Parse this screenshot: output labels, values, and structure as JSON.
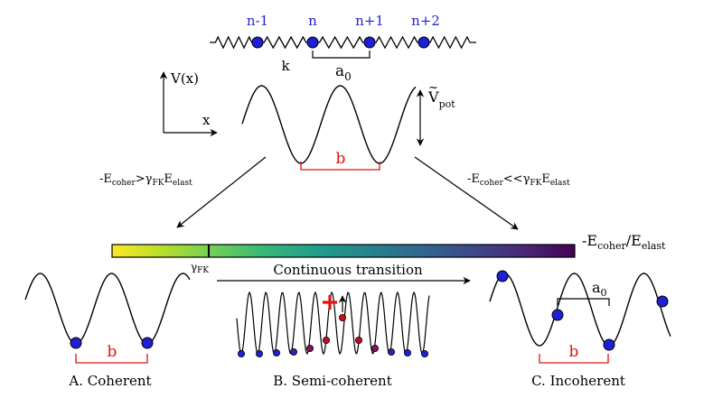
{
  "chain": {
    "labels": [
      "n-1",
      "n",
      "n+1",
      "n+2"
    ],
    "spring_label": "k",
    "spacing_label": "a",
    "spacing_sub": "0"
  },
  "axes": {
    "y_label": "V(x)",
    "x_label": "x"
  },
  "potential": {
    "amplitude_label": "V",
    "amplitude_sub": "pot",
    "period_label": "b"
  },
  "arrows": {
    "left": {
      "pre": "-E",
      "sub1": "coher",
      "rel": ">γ",
      "sub2": "FK",
      "post": "E",
      "sub3": "elast"
    },
    "right": {
      "pre": "-E",
      "sub1": "coher",
      "rel": "<<γ",
      "sub2": "FK",
      "post": "E",
      "sub3": "elast"
    }
  },
  "colorbar": {
    "axis_pre": "-E",
    "axis_sub1": "coher",
    "axis_mid": "/E",
    "axis_sub2": "elast",
    "marker_pre": "γ",
    "marker_sub": "FK",
    "colors": [
      "#fde725",
      "#b5de2b",
      "#6ece58",
      "#35b779",
      "#1f9e89",
      "#26828e",
      "#31688e",
      "#3e4989",
      "#482878",
      "#440154"
    ]
  },
  "transition_label": "Continuous transition",
  "panels": {
    "coherent": {
      "caption": "A. Coherent",
      "period_label": "b"
    },
    "semi": {
      "caption": "B. Semi-coherent"
    },
    "incoherent": {
      "caption": "C. Incoherent",
      "period_label": "b",
      "spacing_label": "a",
      "spacing_sub": "0"
    }
  }
}
